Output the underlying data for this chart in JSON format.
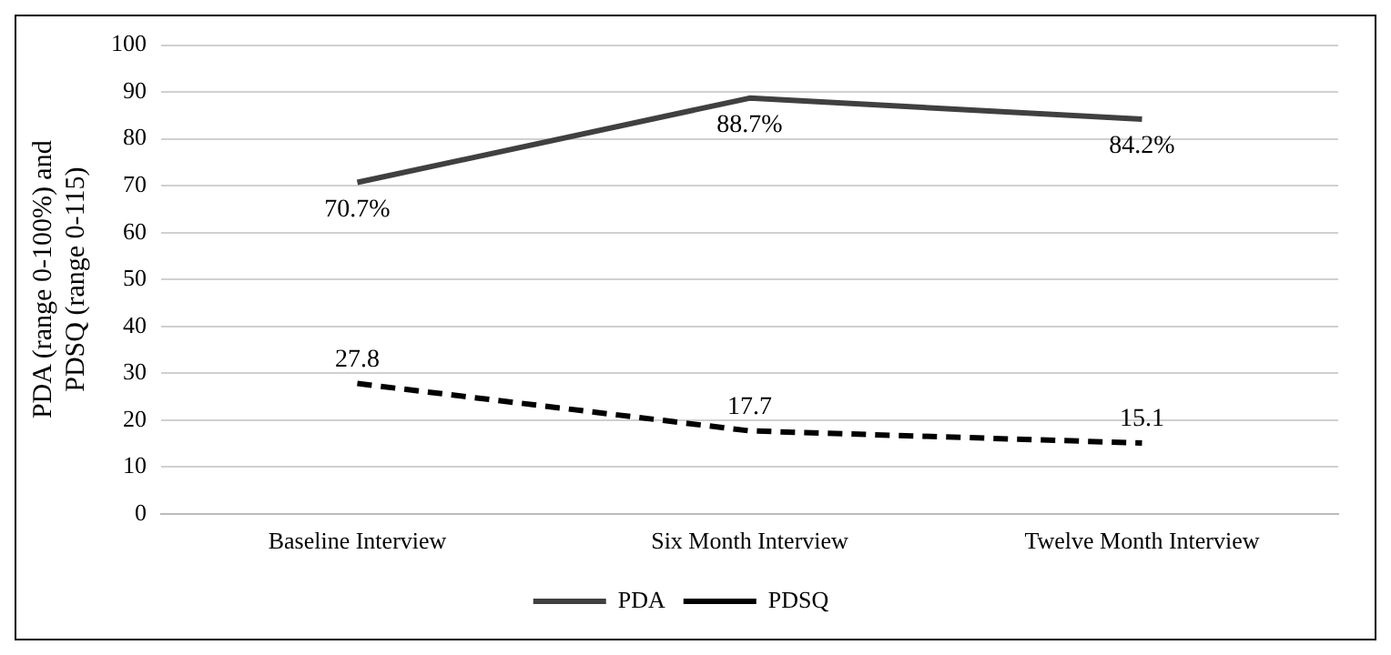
{
  "chart_data": {
    "type": "line",
    "ylabel": "PDA (range 0-100%) and PDSQ (range 0-115)",
    "categories": [
      "Baseline Interview",
      "Six Month Interview",
      "Twelve Month Interview"
    ],
    "series": [
      {
        "name": "PDA",
        "color": "#404040",
        "values": [
          70.7,
          88.7,
          84.2
        ],
        "value_labels": [
          "70.7%",
          "88.7%",
          "84.2%"
        ],
        "line_style": "solid"
      },
      {
        "name": "PDSQ",
        "color": "#000000",
        "values": [
          27.8,
          17.7,
          15.1
        ],
        "value_labels": [
          "27.8",
          "17.7",
          "15.1"
        ],
        "line_style": "dashed"
      }
    ],
    "ylim": [
      0,
      100
    ],
    "yticks": [
      0,
      10,
      20,
      30,
      40,
      50,
      60,
      70,
      80,
      90,
      100
    ],
    "grid": "y",
    "legend": "bottom",
    "marker": "none"
  }
}
